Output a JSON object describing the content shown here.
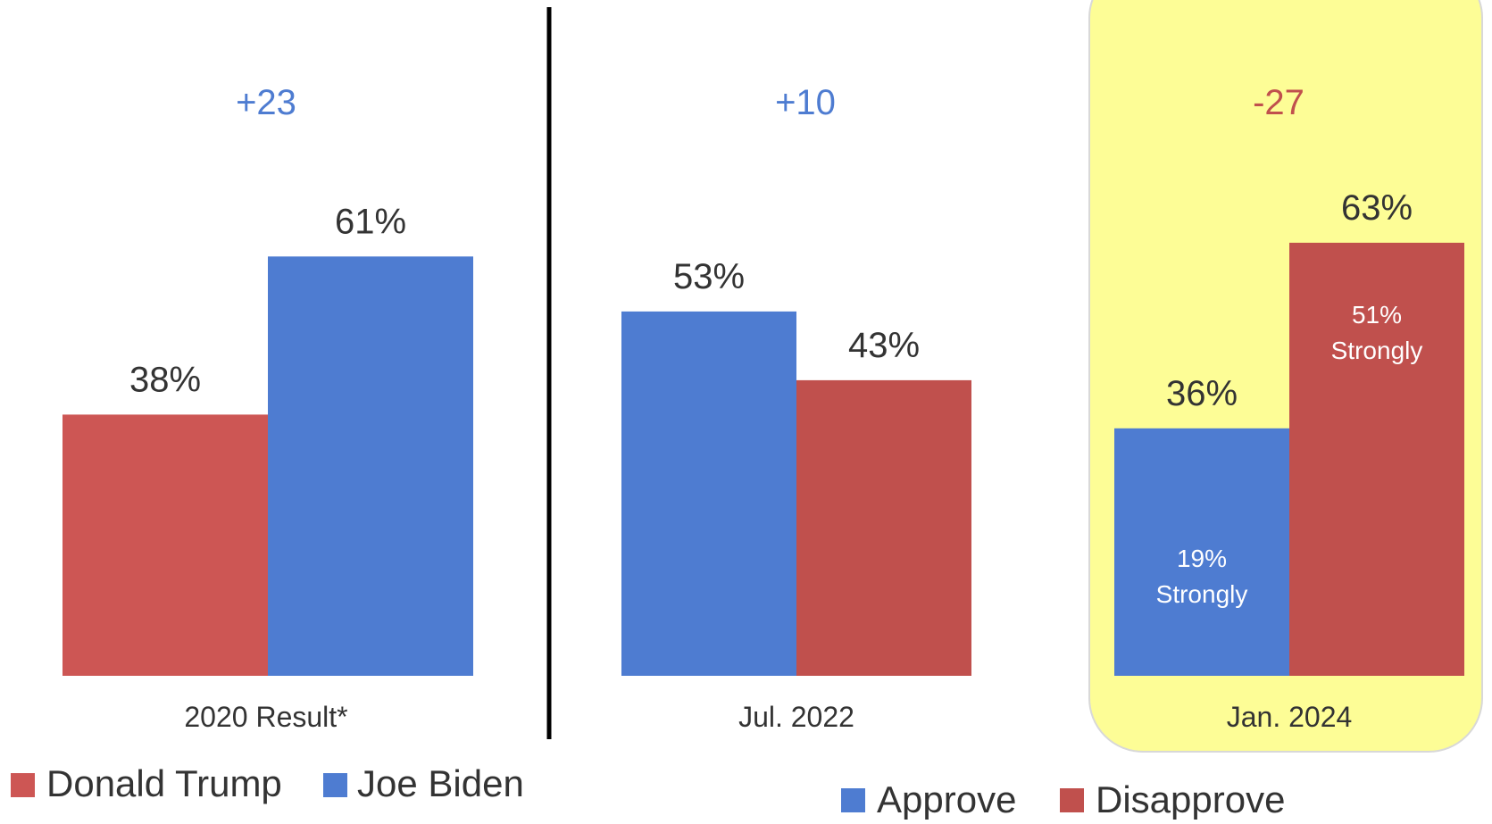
{
  "colors": {
    "trump": "#cd5654",
    "biden": "#4e7cd1",
    "approve": "#4e7cd1",
    "disapprove": "#c0504d",
    "highlight": "#fdfd96",
    "positive_margin": "#4e7cd1",
    "negative_margin": "#c0504d",
    "label_text": "#333333"
  },
  "chart_data": [
    {
      "type": "bar",
      "title": "",
      "categories": [
        "2020 Result*"
      ],
      "series": [
        {
          "name": "Donald Trump",
          "values": [
            38
          ],
          "labels": [
            "38%"
          ]
        },
        {
          "name": "Joe Biden",
          "values": [
            61
          ],
          "labels": [
            "61%"
          ]
        }
      ],
      "margin_label": "+23",
      "ylim": [
        0,
        100
      ],
      "grid": false,
      "legend": "bottom-left"
    },
    {
      "type": "bar",
      "title": "",
      "categories": [
        "Jul. 2022",
        "Jan. 2024"
      ],
      "series": [
        {
          "name": "Approve",
          "values": [
            53,
            36
          ],
          "labels": [
            "53%",
            "36%"
          ],
          "inner_labels": [
            [
              "",
              ""
            ],
            [
              "19%",
              "Strongly"
            ]
          ]
        },
        {
          "name": "Disapprove",
          "values": [
            43,
            63
          ],
          "labels": [
            "43%",
            "63%"
          ],
          "inner_labels": [
            [
              "",
              ""
            ],
            [
              "51%",
              "Strongly"
            ]
          ]
        }
      ],
      "margin_labels": [
        "+10",
        "-27"
      ],
      "highlighted_category": "Jan. 2024",
      "ylim": [
        0,
        100
      ],
      "grid": false,
      "legend": "bottom-right"
    }
  ]
}
